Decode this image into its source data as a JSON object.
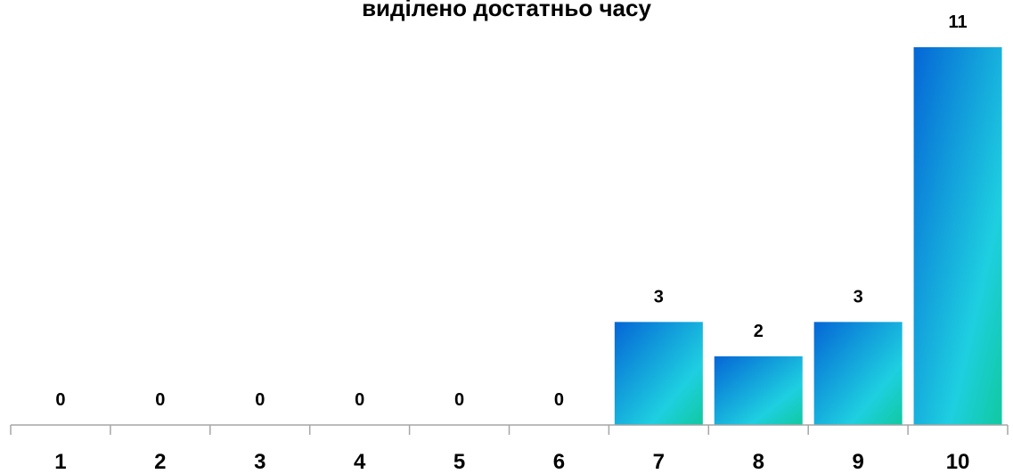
{
  "chart_data": {
    "type": "bar",
    "title": "виділено достатньо часу",
    "categories": [
      "1",
      "2",
      "3",
      "4",
      "5",
      "6",
      "7",
      "8",
      "9",
      "10"
    ],
    "values": [
      0,
      0,
      0,
      0,
      0,
      0,
      3,
      2,
      3,
      11
    ],
    "xlabel": "",
    "ylabel": "",
    "ylim": [
      0,
      11
    ],
    "grid": false,
    "legend": "none",
    "data_labels": true,
    "bar_gradient": [
      "#0566d6",
      "#1ecfe0",
      "#10c9a0"
    ]
  }
}
